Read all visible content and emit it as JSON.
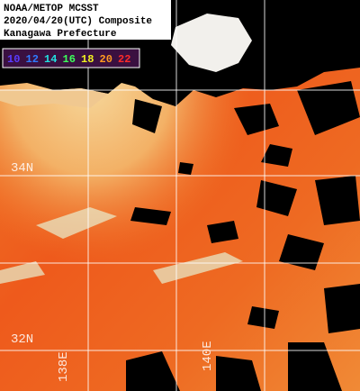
{
  "header": {
    "lines": [
      "NOAA/METOP MCSST",
      "2020/04/20(UTC) Composite",
      "Kanagawa Prefecture"
    ]
  },
  "legend": {
    "labels": [
      {
        "text": "10",
        "color": "#5a3cff"
      },
      {
        "text": "12",
        "color": "#2f7bff"
      },
      {
        "text": "14",
        "color": "#22e0e0"
      },
      {
        "text": "16",
        "color": "#3cff5a"
      },
      {
        "text": "18",
        "color": "#f0f020"
      },
      {
        "text": "20",
        "color": "#ff9a20"
      },
      {
        "text": "22",
        "color": "#ff2a2a"
      }
    ]
  },
  "grid_labels": {
    "latitudes": [
      "34N",
      "32N"
    ],
    "longitudes": [
      "138E",
      "140E"
    ]
  }
}
